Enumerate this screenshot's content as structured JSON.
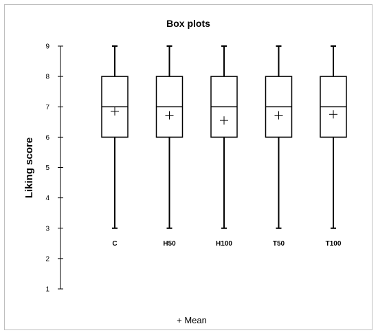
{
  "chart_data": {
    "type": "box",
    "title": "Box plots",
    "xlabel": "",
    "ylabel": "Liking score",
    "ylim": [
      1,
      9
    ],
    "yticks": [
      1,
      2,
      3,
      4,
      5,
      6,
      7,
      8,
      9
    ],
    "grid": false,
    "legend": "+ Mean",
    "legend_placement": "bottom",
    "categories": [
      "C",
      "H50",
      "H100",
      "T50",
      "T100"
    ],
    "boxes": [
      {
        "category": "C",
        "min": 3,
        "q1": 6,
        "median": 7,
        "q3": 8,
        "max": 9,
        "mean": 6.85
      },
      {
        "category": "H50",
        "min": 3,
        "q1": 6,
        "median": 7,
        "q3": 8,
        "max": 9,
        "mean": 6.72
      },
      {
        "category": "H100",
        "min": 3,
        "q1": 6,
        "median": 7,
        "q3": 8,
        "max": 9,
        "mean": 6.55
      },
      {
        "category": "T50",
        "min": 3,
        "q1": 6,
        "median": 7,
        "q3": 8,
        "max": 9,
        "mean": 6.72
      },
      {
        "category": "T100",
        "min": 3,
        "q1": 6,
        "median": 7,
        "q3": 8,
        "max": 9,
        "mean": 6.75
      }
    ],
    "colors": {
      "stroke": "#000000",
      "fill": "#ffffff",
      "frame": "#bfbfbf"
    }
  }
}
